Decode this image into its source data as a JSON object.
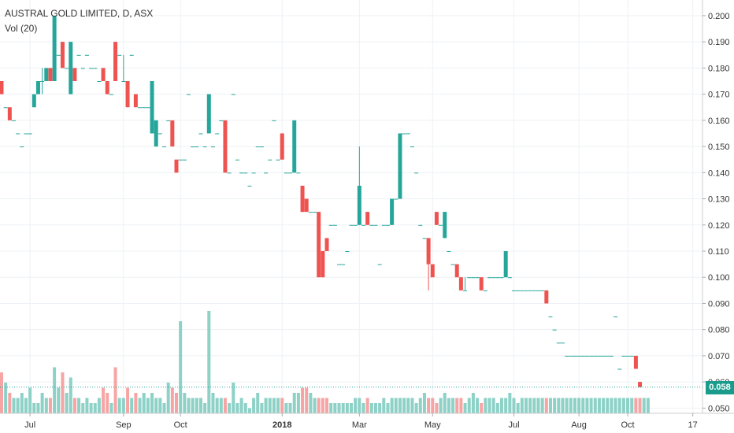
{
  "legend": {
    "title": "AUSTRAL GOLD LIMITED, D, ASX",
    "volume_label": "Vol (20)"
  },
  "last_price_label": "0.058",
  "colors": {
    "up": "#26a69a",
    "down": "#ef5350",
    "up_volume": "#8dd1c7",
    "down_volume": "#f6a5a4",
    "grid": "#eef1f5",
    "price_line": "#26a69a"
  },
  "chart_data": {
    "type": "candlestick",
    "title": "AUSTRAL GOLD LIMITED, D, ASX",
    "y_axis": {
      "ticks": [
        0.05,
        0.06,
        0.07,
        0.08,
        0.09,
        0.1,
        0.11,
        0.12,
        0.13,
        0.14,
        0.15,
        0.16,
        0.17,
        0.18,
        0.19,
        0.2
      ],
      "labels": [
        "0.050",
        "0.060",
        "0.070",
        "0.080",
        "0.090",
        "0.100",
        "0.110",
        "0.120",
        "0.130",
        "0.140",
        "0.150",
        "0.160",
        "0.170",
        "0.180",
        "0.190",
        "0.200"
      ],
      "range": [
        0.048,
        0.206
      ],
      "side": "right"
    },
    "x_axis": {
      "ticks": [
        "Jul",
        "Sep",
        "Oct",
        "2018",
        "Mar",
        "May",
        "Jul",
        "Aug",
        "Oct",
        "17"
      ],
      "tick_index": [
        7,
        30,
        44,
        69,
        88,
        106,
        126,
        142,
        154,
        170
      ],
      "range": [
        0,
        172
      ]
    },
    "last_price": 0.058,
    "grid": true,
    "candles": [
      [
        0,
        0.175,
        0.175,
        0.17,
        0.17
      ],
      [
        1,
        0.165,
        0.165,
        0.165,
        0.165
      ],
      [
        2,
        0.165,
        0.165,
        0.16,
        0.16
      ],
      [
        3,
        0.16,
        0.16,
        0.16,
        0.16
      ],
      [
        4,
        0.155,
        0.155,
        0.155,
        0.155
      ],
      [
        5,
        0.15,
        0.15,
        0.15,
        0.15
      ],
      [
        6,
        0.155,
        0.155,
        0.155,
        0.155
      ],
      [
        7,
        0.155,
        0.155,
        0.155,
        0.155
      ],
      [
        8,
        0.165,
        0.17,
        0.165,
        0.17
      ],
      [
        9,
        0.17,
        0.175,
        0.17,
        0.175
      ],
      [
        10,
        0.175,
        0.18,
        0.17,
        0.175
      ],
      [
        11,
        0.175,
        0.18,
        0.175,
        0.18
      ],
      [
        12,
        0.18,
        0.18,
        0.175,
        0.175
      ],
      [
        13,
        0.175,
        0.2,
        0.175,
        0.2
      ],
      [
        14,
        0.185,
        0.185,
        0.185,
        0.185
      ],
      [
        15,
        0.19,
        0.19,
        0.18,
        0.18
      ],
      [
        16,
        0.18,
        0.18,
        0.18,
        0.18
      ],
      [
        17,
        0.17,
        0.19,
        0.17,
        0.19
      ],
      [
        18,
        0.18,
        0.18,
        0.175,
        0.175
      ],
      [
        19,
        0.185,
        0.185,
        0.185,
        0.185
      ],
      [
        20,
        0.18,
        0.18,
        0.18,
        0.18
      ],
      [
        21,
        0.185,
        0.185,
        0.185,
        0.185
      ],
      [
        22,
        0.18,
        0.18,
        0.18,
        0.18
      ],
      [
        23,
        0.18,
        0.18,
        0.18,
        0.18
      ],
      [
        24,
        0.175,
        0.175,
        0.175,
        0.175
      ],
      [
        25,
        0.18,
        0.18,
        0.175,
        0.175
      ],
      [
        26,
        0.175,
        0.175,
        0.17,
        0.17
      ],
      [
        27,
        0.17,
        0.17,
        0.17,
        0.17
      ],
      [
        28,
        0.19,
        0.19,
        0.175,
        0.175
      ],
      [
        29,
        0.185,
        0.185,
        0.185,
        0.185
      ],
      [
        30,
        0.175,
        0.185,
        0.175,
        0.175
      ],
      [
        31,
        0.175,
        0.175,
        0.165,
        0.165
      ],
      [
        32,
        0.185,
        0.185,
        0.185,
        0.185
      ],
      [
        33,
        0.17,
        0.17,
        0.165,
        0.165
      ],
      [
        34,
        0.165,
        0.165,
        0.165,
        0.165
      ],
      [
        35,
        0.165,
        0.165,
        0.165,
        0.165
      ],
      [
        36,
        0.165,
        0.165,
        0.165,
        0.165
      ],
      [
        37,
        0.155,
        0.175,
        0.155,
        0.175
      ],
      [
        38,
        0.15,
        0.16,
        0.15,
        0.16
      ],
      [
        39,
        0.155,
        0.155,
        0.155,
        0.155
      ],
      [
        40,
        0.15,
        0.15,
        0.15,
        0.15
      ],
      [
        41,
        0.16,
        0.16,
        0.16,
        0.16
      ],
      [
        42,
        0.16,
        0.16,
        0.15,
        0.15
      ],
      [
        43,
        0.145,
        0.145,
        0.14,
        0.14
      ],
      [
        44,
        0.145,
        0.145,
        0.145,
        0.145
      ],
      [
        45,
        0.145,
        0.145,
        0.145,
        0.145
      ],
      [
        46,
        0.17,
        0.17,
        0.17,
        0.17
      ],
      [
        47,
        0.15,
        0.15,
        0.15,
        0.15
      ],
      [
        48,
        0.15,
        0.15,
        0.15,
        0.15
      ],
      [
        49,
        0.155,
        0.155,
        0.155,
        0.155
      ],
      [
        50,
        0.15,
        0.15,
        0.15,
        0.15
      ],
      [
        51,
        0.155,
        0.17,
        0.155,
        0.17
      ],
      [
        52,
        0.15,
        0.15,
        0.15,
        0.15
      ],
      [
        53,
        0.155,
        0.155,
        0.155,
        0.155
      ],
      [
        54,
        0.16,
        0.16,
        0.16,
        0.16
      ],
      [
        55,
        0.16,
        0.16,
        0.14,
        0.14
      ],
      [
        56,
        0.14,
        0.14,
        0.14,
        0.14
      ],
      [
        57,
        0.17,
        0.17,
        0.17,
        0.17
      ],
      [
        58,
        0.145,
        0.145,
        0.145,
        0.145
      ],
      [
        59,
        0.14,
        0.14,
        0.14,
        0.14
      ],
      [
        60,
        0.14,
        0.14,
        0.14,
        0.14
      ],
      [
        61,
        0.135,
        0.135,
        0.135,
        0.135
      ],
      [
        62,
        0.14,
        0.14,
        0.14,
        0.14
      ],
      [
        63,
        0.15,
        0.15,
        0.15,
        0.15
      ],
      [
        64,
        0.15,
        0.15,
        0.15,
        0.15
      ],
      [
        65,
        0.14,
        0.14,
        0.14,
        0.14
      ],
      [
        66,
        0.145,
        0.145,
        0.145,
        0.145
      ],
      [
        67,
        0.16,
        0.16,
        0.16,
        0.16
      ],
      [
        68,
        0.145,
        0.145,
        0.145,
        0.145
      ],
      [
        69,
        0.155,
        0.155,
        0.145,
        0.145
      ],
      [
        70,
        0.14,
        0.14,
        0.14,
        0.14
      ],
      [
        71,
        0.14,
        0.14,
        0.14,
        0.14
      ],
      [
        72,
        0.14,
        0.16,
        0.14,
        0.16
      ],
      [
        73,
        0.14,
        0.14,
        0.14,
        0.14
      ],
      [
        74,
        0.135,
        0.135,
        0.125,
        0.125
      ],
      [
        75,
        0.13,
        0.13,
        0.125,
        0.125
      ],
      [
        76,
        0.125,
        0.125,
        0.125,
        0.125
      ],
      [
        77,
        0.125,
        0.125,
        0.125,
        0.125
      ],
      [
        78,
        0.125,
        0.125,
        0.1,
        0.1
      ],
      [
        79,
        0.11,
        0.11,
        0.1,
        0.1
      ],
      [
        80,
        0.115,
        0.115,
        0.11,
        0.11
      ],
      [
        81,
        0.12,
        0.12,
        0.12,
        0.12
      ],
      [
        82,
        0.12,
        0.12,
        0.12,
        0.12
      ],
      [
        83,
        0.105,
        0.105,
        0.105,
        0.105
      ],
      [
        84,
        0.105,
        0.105,
        0.105,
        0.105
      ],
      [
        85,
        0.11,
        0.11,
        0.11,
        0.11
      ],
      [
        86,
        0.12,
        0.12,
        0.12,
        0.12
      ],
      [
        87,
        0.12,
        0.12,
        0.12,
        0.12
      ],
      [
        88,
        0.12,
        0.15,
        0.12,
        0.135
      ],
      [
        89,
        0.12,
        0.12,
        0.12,
        0.12
      ],
      [
        90,
        0.125,
        0.125,
        0.12,
        0.12
      ],
      [
        91,
        0.12,
        0.12,
        0.12,
        0.12
      ],
      [
        92,
        0.12,
        0.12,
        0.12,
        0.12
      ],
      [
        93,
        0.105,
        0.105,
        0.105,
        0.105
      ],
      [
        94,
        0.12,
        0.12,
        0.12,
        0.12
      ],
      [
        95,
        0.12,
        0.12,
        0.12,
        0.12
      ],
      [
        96,
        0.12,
        0.13,
        0.12,
        0.13
      ],
      [
        97,
        0.13,
        0.13,
        0.13,
        0.13
      ],
      [
        98,
        0.13,
        0.155,
        0.13,
        0.155
      ],
      [
        99,
        0.155,
        0.155,
        0.155,
        0.155
      ],
      [
        100,
        0.155,
        0.155,
        0.155,
        0.155
      ],
      [
        101,
        0.15,
        0.15,
        0.15,
        0.15
      ],
      [
        102,
        0.14,
        0.14,
        0.14,
        0.14
      ],
      [
        103,
        0.12,
        0.12,
        0.12,
        0.12
      ],
      [
        104,
        0.115,
        0.115,
        0.115,
        0.115
      ],
      [
        105,
        0.115,
        0.115,
        0.095,
        0.105
      ],
      [
        106,
        0.105,
        0.105,
        0.1,
        0.1
      ],
      [
        107,
        0.125,
        0.125,
        0.12,
        0.12
      ],
      [
        108,
        0.12,
        0.12,
        0.12,
        0.12
      ],
      [
        109,
        0.115,
        0.125,
        0.115,
        0.125
      ],
      [
        110,
        0.11,
        0.11,
        0.11,
        0.11
      ],
      [
        111,
        0.105,
        0.105,
        0.105,
        0.105
      ],
      [
        112,
        0.105,
        0.105,
        0.1,
        0.1
      ],
      [
        113,
        0.1,
        0.1,
        0.095,
        0.095
      ],
      [
        114,
        0.095,
        0.1,
        0.095,
        0.095
      ],
      [
        115,
        0.1,
        0.1,
        0.1,
        0.1
      ],
      [
        116,
        0.1,
        0.1,
        0.1,
        0.1
      ],
      [
        117,
        0.1,
        0.1,
        0.1,
        0.1
      ],
      [
        118,
        0.1,
        0.1,
        0.095,
        0.095
      ],
      [
        119,
        0.095,
        0.095,
        0.095,
        0.095
      ],
      [
        120,
        0.1,
        0.1,
        0.1,
        0.1
      ],
      [
        121,
        0.1,
        0.1,
        0.1,
        0.1
      ],
      [
        122,
        0.1,
        0.1,
        0.1,
        0.1
      ],
      [
        123,
        0.1,
        0.1,
        0.1,
        0.1
      ],
      [
        124,
        0.1,
        0.11,
        0.1,
        0.11
      ],
      [
        125,
        0.1,
        0.1,
        0.1,
        0.1
      ],
      [
        126,
        0.095,
        0.095,
        0.095,
        0.095
      ],
      [
        127,
        0.095,
        0.095,
        0.095,
        0.095
      ],
      [
        128,
        0.095,
        0.095,
        0.095,
        0.095
      ],
      [
        129,
        0.095,
        0.095,
        0.095,
        0.095
      ],
      [
        130,
        0.095,
        0.095,
        0.095,
        0.095
      ],
      [
        131,
        0.095,
        0.095,
        0.095,
        0.095
      ],
      [
        132,
        0.095,
        0.095,
        0.095,
        0.095
      ],
      [
        133,
        0.095,
        0.095,
        0.095,
        0.095
      ],
      [
        134,
        0.095,
        0.095,
        0.09,
        0.09
      ],
      [
        135,
        0.085,
        0.085,
        0.085,
        0.085
      ],
      [
        136,
        0.08,
        0.08,
        0.08,
        0.08
      ],
      [
        137,
        0.075,
        0.075,
        0.075,
        0.075
      ],
      [
        138,
        0.075,
        0.075,
        0.075,
        0.075
      ],
      [
        139,
        0.07,
        0.07,
        0.07,
        0.07
      ],
      [
        140,
        0.07,
        0.07,
        0.07,
        0.07
      ],
      [
        141,
        0.07,
        0.07,
        0.07,
        0.07
      ],
      [
        142,
        0.07,
        0.07,
        0.07,
        0.07
      ],
      [
        143,
        0.07,
        0.07,
        0.07,
        0.07
      ],
      [
        144,
        0.07,
        0.07,
        0.07,
        0.07
      ],
      [
        145,
        0.07,
        0.07,
        0.07,
        0.07
      ],
      [
        146,
        0.07,
        0.07,
        0.07,
        0.07
      ],
      [
        147,
        0.07,
        0.07,
        0.07,
        0.07
      ],
      [
        148,
        0.07,
        0.07,
        0.07,
        0.07
      ],
      [
        149,
        0.07,
        0.07,
        0.07,
        0.07
      ],
      [
        150,
        0.07,
        0.07,
        0.07,
        0.07
      ],
      [
        151,
        0.085,
        0.085,
        0.085,
        0.085
      ],
      [
        152,
        0.065,
        0.065,
        0.065,
        0.065
      ],
      [
        153,
        0.07,
        0.07,
        0.07,
        0.07
      ],
      [
        154,
        0.07,
        0.07,
        0.07,
        0.07
      ],
      [
        155,
        0.07,
        0.07,
        0.07,
        0.07
      ],
      [
        156,
        0.07,
        0.07,
        0.065,
        0.065
      ],
      [
        157,
        0.06,
        0.06,
        0.058,
        0.058
      ]
    ],
    "volume": [
      0.8,
      0.6,
      0.4,
      0.3,
      0.3,
      0.4,
      0.3,
      0.5,
      0.2,
      0.2,
      0.4,
      0.3,
      0.3,
      0.9,
      0.5,
      0.8,
      0.4,
      0.7,
      0.3,
      0.3,
      0.2,
      0.3,
      0.2,
      0.2,
      0.3,
      0.5,
      0.4,
      0.2,
      0.9,
      0.3,
      0.3,
      0.5,
      0.3,
      0.4,
      0.3,
      0.4,
      0.3,
      0.4,
      0.3,
      0.3,
      0.2,
      0.6,
      0.5,
      0.4,
      1.8,
      0.4,
      0.3,
      0.3,
      0.3,
      0.3,
      0.2,
      2.0,
      0.4,
      0.3,
      0.3,
      0.3,
      0.2,
      0.6,
      0.2,
      0.3,
      0.2,
      0.1,
      0.3,
      0.4,
      0.2,
      0.3,
      0.3,
      0.3,
      0.3,
      0.3,
      0.2,
      0.2,
      0.4,
      0.4,
      0.5,
      0.5,
      0.4,
      0.3,
      0.3,
      0.3,
      0.3,
      0.2,
      0.2,
      0.2,
      0.2,
      0.2,
      0.2,
      0.3,
      0.3,
      0.2,
      0.3,
      0.2,
      0.2,
      0.2,
      0.3,
      0.2,
      0.3,
      0.3,
      0.3,
      0.3,
      0.3,
      0.3,
      0.2,
      0.3,
      0.4,
      0.3,
      0.3,
      0.2,
      0.3,
      0.4,
      0.3,
      0.3,
      0.3,
      0.3,
      0.2,
      0.3,
      0.4,
      0.3,
      0.2,
      0.3,
      0.3,
      0.3,
      0.2,
      0.3,
      0.3,
      0.4,
      0.3,
      0.2,
      0.3,
      0.3,
      0.3,
      0.3,
      0.3,
      0.3,
      0.3,
      0.3,
      0.3,
      0.3,
      0.3,
      0.3,
      0.3,
      0.3,
      0.3,
      0.3,
      0.3,
      0.3,
      0.3,
      0.3,
      0.3,
      0.3,
      0.3,
      0.3,
      0.3,
      0.3,
      0.3,
      0.3,
      0.3,
      0.3,
      0.3,
      0.3
    ]
  }
}
